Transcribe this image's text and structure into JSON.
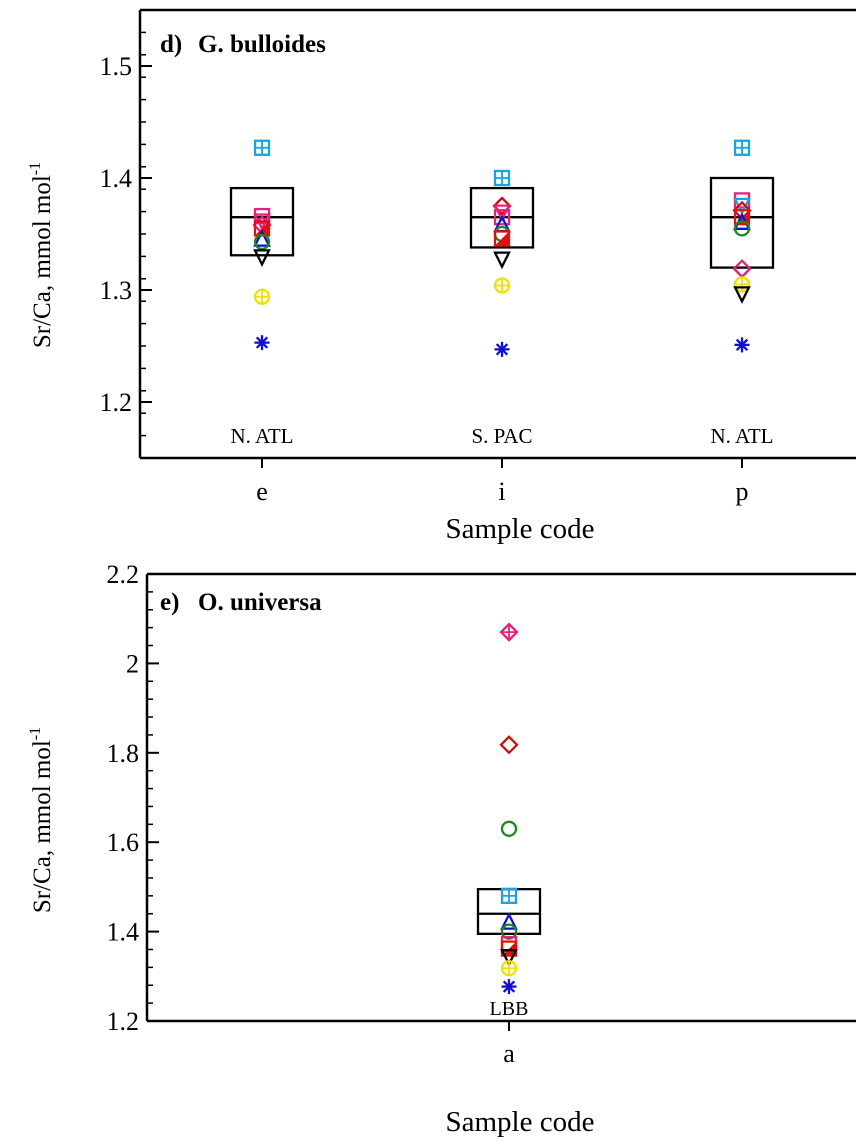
{
  "chart_data": [
    {
      "panel": "d)",
      "title": "G. bulloides",
      "type": "scatter",
      "ylabel": "Sr/Ca, mmol mol",
      "ylabel_sup": "-1",
      "xlabel": "Sample code",
      "ylim": [
        1.15,
        1.55
      ],
      "yticks": [
        "1.2",
        "1.3",
        "1.4",
        "1.5"
      ],
      "categories": [
        "e",
        "i",
        "p"
      ],
      "region_labels": [
        "N. ATL",
        "S. PAC",
        "N. ATL"
      ],
      "boxes": [
        {
          "category": "e",
          "low": 1.331,
          "mid": 1.365,
          "high": 1.391
        },
        {
          "category": "i",
          "low": 1.338,
          "mid": 1.365,
          "high": 1.391
        },
        {
          "category": "p",
          "low": 1.32,
          "mid": 1.365,
          "high": 1.4
        }
      ],
      "points": [
        {
          "category": "e",
          "y": 1.427,
          "marker": "squareplus",
          "color": "#1aa3e0"
        },
        {
          "category": "e",
          "y": 1.366,
          "marker": "square",
          "color": "#e8207a"
        },
        {
          "category": "e",
          "y": 1.362,
          "marker": "triangle-down",
          "color": "#e8207a"
        },
        {
          "category": "e",
          "y": 1.358,
          "marker": "diamond",
          "color": "#e8207a"
        },
        {
          "category": "e",
          "y": 1.355,
          "marker": "halfsquare",
          "color": "#e01010"
        },
        {
          "category": "e",
          "y": 1.345,
          "marker": "triangle-up",
          "color": "#1010d0"
        },
        {
          "category": "e",
          "y": 1.343,
          "marker": "circle",
          "color": "#1a8a1a"
        },
        {
          "category": "e",
          "y": 1.33,
          "marker": "triangle-down",
          "color": "#000000"
        },
        {
          "category": "e",
          "y": 1.294,
          "marker": "circleplus",
          "color": "#f0e000"
        },
        {
          "category": "e",
          "y": 1.253,
          "marker": "asterisk",
          "color": "#1010d0"
        },
        {
          "category": "i",
          "y": 1.4,
          "marker": "squareplus",
          "color": "#1aa3e0"
        },
        {
          "category": "i",
          "y": 1.375,
          "marker": "diamond",
          "color": "#c81010"
        },
        {
          "category": "i",
          "y": 1.37,
          "marker": "triangle-down",
          "color": "#e8207a"
        },
        {
          "category": "i",
          "y": 1.365,
          "marker": "square",
          "color": "#e8207a"
        },
        {
          "category": "i",
          "y": 1.358,
          "marker": "triangle-up",
          "color": "#1010d0"
        },
        {
          "category": "i",
          "y": 1.35,
          "marker": "circle",
          "color": "#1a8a1a"
        },
        {
          "category": "i",
          "y": 1.346,
          "marker": "halfsquare",
          "color": "#e01010"
        },
        {
          "category": "i",
          "y": 1.328,
          "marker": "triangle-down",
          "color": "#000000"
        },
        {
          "category": "i",
          "y": 1.304,
          "marker": "circleplus",
          "color": "#f0e000"
        },
        {
          "category": "i",
          "y": 1.247,
          "marker": "asterisk",
          "color": "#1010d0"
        },
        {
          "category": "p",
          "y": 1.427,
          "marker": "squareplus",
          "color": "#1aa3e0"
        },
        {
          "category": "p",
          "y": 1.38,
          "marker": "square",
          "color": "#e8207a"
        },
        {
          "category": "p",
          "y": 1.376,
          "marker": "triangle-down",
          "color": "#1aa3e0"
        },
        {
          "category": "p",
          "y": 1.371,
          "marker": "diamond",
          "color": "#c81010"
        },
        {
          "category": "p",
          "y": 1.365,
          "marker": "halfsquare",
          "color": "#e01010"
        },
        {
          "category": "p",
          "y": 1.36,
          "marker": "triangle-up",
          "color": "#1010d0"
        },
        {
          "category": "p",
          "y": 1.355,
          "marker": "circle",
          "color": "#1a8a1a"
        },
        {
          "category": "p",
          "y": 1.319,
          "marker": "diamond",
          "color": "#e8207a"
        },
        {
          "category": "p",
          "y": 1.305,
          "marker": "circleplus",
          "color": "#f0e000"
        },
        {
          "category": "p",
          "y": 1.297,
          "marker": "triangle-down",
          "color": "#000000"
        },
        {
          "category": "p",
          "y": 1.251,
          "marker": "asterisk",
          "color": "#1010d0"
        }
      ]
    },
    {
      "panel": "e)",
      "title": "O. universa",
      "type": "scatter",
      "ylabel": "Sr/Ca, mmol mol",
      "ylabel_sup": "-1",
      "xlabel": "Sample code",
      "ylim": [
        1.2,
        2.2
      ],
      "yticks": [
        "1.2",
        "1.4",
        "1.6",
        "1.8",
        "2",
        "2.2"
      ],
      "categories": [
        "a"
      ],
      "region_labels": [
        "LBB"
      ],
      "boxes": [
        {
          "category": "a",
          "low": 1.395,
          "mid": 1.44,
          "high": 1.495
        }
      ],
      "points": [
        {
          "category": "a",
          "y": 2.07,
          "marker": "diamondplus",
          "color": "#e8207a"
        },
        {
          "category": "a",
          "y": 1.818,
          "marker": "diamond",
          "color": "#c81010"
        },
        {
          "category": "a",
          "y": 1.63,
          "marker": "circle",
          "color": "#1a8a1a"
        },
        {
          "category": "a",
          "y": 1.48,
          "marker": "squareplus",
          "color": "#1aa3e0"
        },
        {
          "category": "a",
          "y": 1.42,
          "marker": "triangle-up",
          "color": "#1010d0"
        },
        {
          "category": "a",
          "y": 1.4,
          "marker": "circle",
          "color": "#1a8a1a"
        },
        {
          "category": "a",
          "y": 1.372,
          "marker": "square",
          "color": "#e8207a"
        },
        {
          "category": "a",
          "y": 1.362,
          "marker": "halfsquare",
          "color": "#e01010"
        },
        {
          "category": "a",
          "y": 1.345,
          "marker": "triangle-down",
          "color": "#000000"
        },
        {
          "category": "a",
          "y": 1.318,
          "marker": "circleplus",
          "color": "#f0e000"
        },
        {
          "category": "a",
          "y": 1.277,
          "marker": "asterisk",
          "color": "#1010d0"
        }
      ]
    }
  ]
}
